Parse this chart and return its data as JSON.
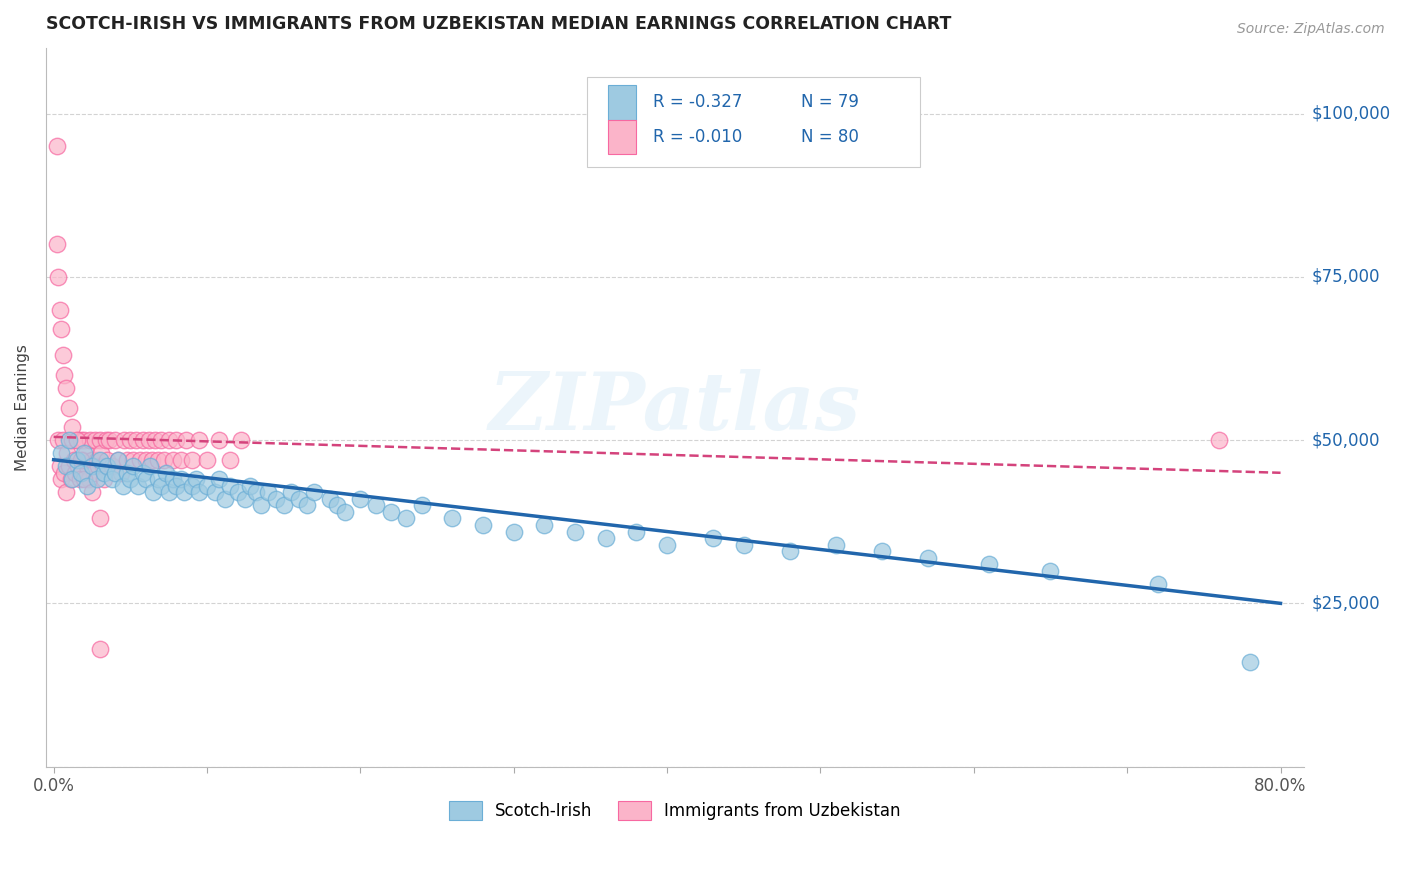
{
  "title": "SCOTCH-IRISH VS IMMIGRANTS FROM UZBEKISTAN MEDIAN EARNINGS CORRELATION CHART",
  "source_text": "Source: ZipAtlas.com",
  "ylabel": "Median Earnings",
  "xlim": [
    -0.005,
    0.815
  ],
  "ylim": [
    0,
    110000
  ],
  "x_ticks": [
    0.0,
    0.1,
    0.2,
    0.3,
    0.4,
    0.5,
    0.6,
    0.7,
    0.8
  ],
  "x_tick_labels": [
    "0.0%",
    "",
    "",
    "",
    "",
    "",
    "",
    "",
    "80.0%"
  ],
  "y_ticks": [
    0,
    25000,
    50000,
    75000,
    100000
  ],
  "y_tick_labels": [
    "",
    "$25,000",
    "$50,000",
    "$75,000",
    "$100,000"
  ],
  "legend_labels": [
    "Scotch-Irish",
    "Immigrants from Uzbekistan"
  ],
  "r_scotch_irish": "-0.327",
  "n_scotch_irish": "79",
  "r_uzbekistan": "-0.010",
  "n_uzbekistan": "80",
  "scotch_irish_color": "#9ecae1",
  "uzbekistan_color": "#fbb4c9",
  "scotch_irish_edge": "#6baed6",
  "uzbekistan_edge": "#f768a1",
  "trendline_scotch_irish_color": "#2166ac",
  "trendline_uzbekistan_color": "#d4437c",
  "watermark": "ZIPatlas",
  "background_color": "#ffffff",
  "grid_color": "#c8c8c8",
  "title_color": "#222222",
  "ylabel_color": "#444444",
  "ytick_label_color": "#2166ac",
  "scotch_irish_x": [
    0.005,
    0.008,
    0.01,
    0.012,
    0.015,
    0.018,
    0.02,
    0.022,
    0.025,
    0.028,
    0.03,
    0.033,
    0.035,
    0.038,
    0.04,
    0.042,
    0.045,
    0.048,
    0.05,
    0.052,
    0.055,
    0.058,
    0.06,
    0.063,
    0.065,
    0.068,
    0.07,
    0.073,
    0.075,
    0.078,
    0.08,
    0.083,
    0.085,
    0.09,
    0.093,
    0.095,
    0.1,
    0.105,
    0.108,
    0.112,
    0.115,
    0.12,
    0.125,
    0.128,
    0.132,
    0.135,
    0.14,
    0.145,
    0.15,
    0.155,
    0.16,
    0.165,
    0.17,
    0.18,
    0.185,
    0.19,
    0.2,
    0.21,
    0.22,
    0.23,
    0.24,
    0.26,
    0.28,
    0.3,
    0.32,
    0.34,
    0.36,
    0.38,
    0.4,
    0.43,
    0.45,
    0.48,
    0.51,
    0.54,
    0.57,
    0.61,
    0.65,
    0.72,
    0.78
  ],
  "scotch_irish_y": [
    48000,
    46000,
    50000,
    44000,
    47000,
    45000,
    48000,
    43000,
    46000,
    44000,
    47000,
    45000,
    46000,
    44000,
    45000,
    47000,
    43000,
    45000,
    44000,
    46000,
    43000,
    45000,
    44000,
    46000,
    42000,
    44000,
    43000,
    45000,
    42000,
    44000,
    43000,
    44000,
    42000,
    43000,
    44000,
    42000,
    43000,
    42000,
    44000,
    41000,
    43000,
    42000,
    41000,
    43000,
    42000,
    40000,
    42000,
    41000,
    40000,
    42000,
    41000,
    40000,
    42000,
    41000,
    40000,
    39000,
    41000,
    40000,
    39000,
    38000,
    40000,
    38000,
    37000,
    36000,
    37000,
    36000,
    35000,
    36000,
    34000,
    35000,
    34000,
    33000,
    34000,
    33000,
    32000,
    31000,
    30000,
    28000,
    16000
  ],
  "uzbekistan_x": [
    0.002,
    0.003,
    0.004,
    0.005,
    0.006,
    0.007,
    0.008,
    0.009,
    0.01,
    0.011,
    0.012,
    0.013,
    0.014,
    0.015,
    0.016,
    0.017,
    0.018,
    0.019,
    0.02,
    0.021,
    0.022,
    0.023,
    0.024,
    0.025,
    0.026,
    0.027,
    0.028,
    0.029,
    0.03,
    0.031,
    0.032,
    0.033,
    0.034,
    0.035,
    0.036,
    0.038,
    0.04,
    0.042,
    0.044,
    0.046,
    0.048,
    0.05,
    0.052,
    0.054,
    0.056,
    0.058,
    0.06,
    0.062,
    0.064,
    0.066,
    0.068,
    0.07,
    0.072,
    0.075,
    0.078,
    0.08,
    0.083,
    0.086,
    0.09,
    0.095,
    0.1,
    0.108,
    0.115,
    0.122,
    0.002,
    0.003,
    0.004,
    0.005,
    0.006,
    0.007,
    0.008,
    0.01,
    0.012,
    0.015,
    0.018,
    0.02,
    0.025,
    0.03,
    0.03,
    0.76
  ],
  "uzbekistan_y": [
    95000,
    50000,
    46000,
    44000,
    50000,
    45000,
    42000,
    48000,
    46000,
    44000,
    50000,
    47000,
    45000,
    50000,
    46000,
    44000,
    50000,
    47000,
    50000,
    48000,
    46000,
    44000,
    50000,
    47000,
    45000,
    50000,
    47000,
    46000,
    50000,
    48000,
    46000,
    44000,
    50000,
    47000,
    50000,
    46000,
    50000,
    47000,
    45000,
    50000,
    47000,
    50000,
    47000,
    50000,
    47000,
    50000,
    47000,
    50000,
    47000,
    50000,
    47000,
    50000,
    47000,
    50000,
    47000,
    50000,
    47000,
    50000,
    47000,
    50000,
    47000,
    50000,
    47000,
    50000,
    80000,
    75000,
    70000,
    67000,
    63000,
    60000,
    58000,
    55000,
    52000,
    50000,
    47000,
    44000,
    42000,
    38000,
    18000,
    50000
  ]
}
